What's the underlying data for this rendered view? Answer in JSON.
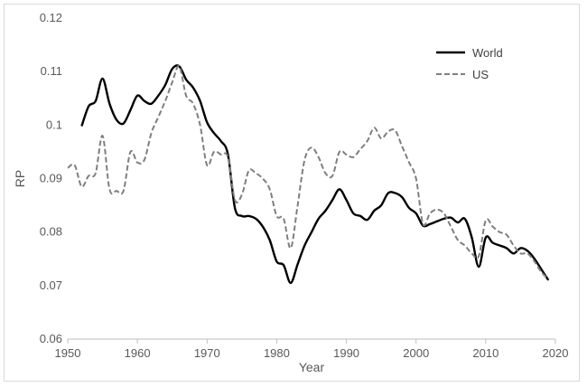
{
  "chart_data": {
    "type": "line",
    "title": "",
    "xlabel": "Year",
    "ylabel": "RP",
    "xlim": [
      1950,
      2020
    ],
    "ylim": [
      0.06,
      0.12
    ],
    "x_ticks": [
      "1950",
      "1960",
      "1970",
      "1980",
      "1990",
      "2000",
      "2010",
      "2020"
    ],
    "y_ticks": [
      "0.06",
      "0.07",
      "0.08",
      "0.09",
      "0.1",
      "0.11",
      "0.12"
    ],
    "grid": false,
    "legend_position": "top-right",
    "series": [
      {
        "name": "World",
        "color": "#000000",
        "style": "solid",
        "points": [
          [
            1952,
            0.0998
          ],
          [
            1953,
            0.1035
          ],
          [
            1954,
            0.1045
          ],
          [
            1955,
            0.1087
          ],
          [
            1956,
            0.104
          ],
          [
            1957,
            0.101
          ],
          [
            1958,
            0.1003
          ],
          [
            1959,
            0.1028
          ],
          [
            1960,
            0.1055
          ],
          [
            1961,
            0.1045
          ],
          [
            1962,
            0.104
          ],
          [
            1963,
            0.1055
          ],
          [
            1964,
            0.1075
          ],
          [
            1965,
            0.1105
          ],
          [
            1966,
            0.111
          ],
          [
            1967,
            0.1085
          ],
          [
            1968,
            0.107
          ],
          [
            1969,
            0.1045
          ],
          [
            1970,
            0.1005
          ],
          [
            1971,
            0.0985
          ],
          [
            1972,
            0.097
          ],
          [
            1973,
            0.0945
          ],
          [
            1974,
            0.0845
          ],
          [
            1975,
            0.083
          ],
          [
            1976,
            0.083
          ],
          [
            1977,
            0.0825
          ],
          [
            1978,
            0.081
          ],
          [
            1979,
            0.0785
          ],
          [
            1980,
            0.0745
          ],
          [
            1981,
            0.0738
          ],
          [
            1982,
            0.0705
          ],
          [
            1983,
            0.074
          ],
          [
            1984,
            0.0775
          ],
          [
            1985,
            0.08
          ],
          [
            1986,
            0.0825
          ],
          [
            1987,
            0.084
          ],
          [
            1988,
            0.086
          ],
          [
            1989,
            0.088
          ],
          [
            1990,
            0.086
          ],
          [
            1991,
            0.0835
          ],
          [
            1992,
            0.083
          ],
          [
            1993,
            0.0823
          ],
          [
            1994,
            0.084
          ],
          [
            1995,
            0.085
          ],
          [
            1996,
            0.0873
          ],
          [
            1997,
            0.0873
          ],
          [
            1998,
            0.0865
          ],
          [
            1999,
            0.0845
          ],
          [
            2000,
            0.0835
          ],
          [
            2001,
            0.0812
          ],
          [
            2002,
            0.0815
          ],
          [
            2003,
            0.082
          ],
          [
            2004,
            0.0825
          ],
          [
            2005,
            0.0827
          ],
          [
            2006,
            0.0818
          ],
          [
            2007,
            0.0825
          ],
          [
            2008,
            0.079
          ],
          [
            2009,
            0.0735
          ],
          [
            2010,
            0.079
          ],
          [
            2011,
            0.078
          ],
          [
            2012,
            0.0775
          ],
          [
            2013,
            0.077
          ],
          [
            2014,
            0.076
          ],
          [
            2015,
            0.077
          ],
          [
            2016,
            0.0765
          ],
          [
            2017,
            0.075
          ],
          [
            2018,
            0.073
          ],
          [
            2019,
            0.071
          ]
        ]
      },
      {
        "name": "US",
        "color": "#7f7f7f",
        "style": "dashed",
        "points": [
          [
            1950,
            0.092
          ],
          [
            1951,
            0.0925
          ],
          [
            1952,
            0.0885
          ],
          [
            1953,
            0.0905
          ],
          [
            1954,
            0.091
          ],
          [
            1955,
            0.098
          ],
          [
            1956,
            0.088
          ],
          [
            1957,
            0.0877
          ],
          [
            1958,
            0.0877
          ],
          [
            1959,
            0.095
          ],
          [
            1960,
            0.093
          ],
          [
            1961,
            0.0935
          ],
          [
            1962,
            0.0985
          ],
          [
            1963,
            0.1015
          ],
          [
            1964,
            0.1045
          ],
          [
            1965,
            0.108
          ],
          [
            1966,
            0.111
          ],
          [
            1967,
            0.1055
          ],
          [
            1968,
            0.104
          ],
          [
            1969,
            0.1
          ],
          [
            1970,
            0.0925
          ],
          [
            1971,
            0.095
          ],
          [
            1972,
            0.0945
          ],
          [
            1973,
            0.094
          ],
          [
            1974,
            0.086
          ],
          [
            1975,
            0.087
          ],
          [
            1976,
            0.0915
          ],
          [
            1977,
            0.091
          ],
          [
            1978,
            0.09
          ],
          [
            1979,
            0.088
          ],
          [
            1980,
            0.083
          ],
          [
            1981,
            0.0825
          ],
          [
            1982,
            0.077
          ],
          [
            1983,
            0.085
          ],
          [
            1984,
            0.0935
          ],
          [
            1985,
            0.0958
          ],
          [
            1986,
            0.094
          ],
          [
            1987,
            0.091
          ],
          [
            1988,
            0.0905
          ],
          [
            1989,
            0.095
          ],
          [
            1990,
            0.0945
          ],
          [
            1991,
            0.094
          ],
          [
            1992,
            0.0955
          ],
          [
            1993,
            0.097
          ],
          [
            1994,
            0.0995
          ],
          [
            1995,
            0.0975
          ],
          [
            1996,
            0.0988
          ],
          [
            1997,
            0.099
          ],
          [
            1998,
            0.096
          ],
          [
            1999,
            0.093
          ],
          [
            2000,
            0.09
          ],
          [
            2001,
            0.0815
          ],
          [
            2002,
            0.0835
          ],
          [
            2003,
            0.0842
          ],
          [
            2004,
            0.0835
          ],
          [
            2005,
            0.081
          ],
          [
            2006,
            0.0785
          ],
          [
            2007,
            0.0775
          ],
          [
            2008,
            0.076
          ],
          [
            2009,
            0.0755
          ],
          [
            2010,
            0.0822
          ],
          [
            2011,
            0.081
          ],
          [
            2012,
            0.08
          ],
          [
            2013,
            0.0795
          ],
          [
            2014,
            0.0775
          ],
          [
            2015,
            0.076
          ],
          [
            2016,
            0.076
          ],
          [
            2017,
            0.0745
          ],
          [
            2018,
            0.0725
          ],
          [
            2019,
            0.0712
          ]
        ]
      }
    ]
  }
}
